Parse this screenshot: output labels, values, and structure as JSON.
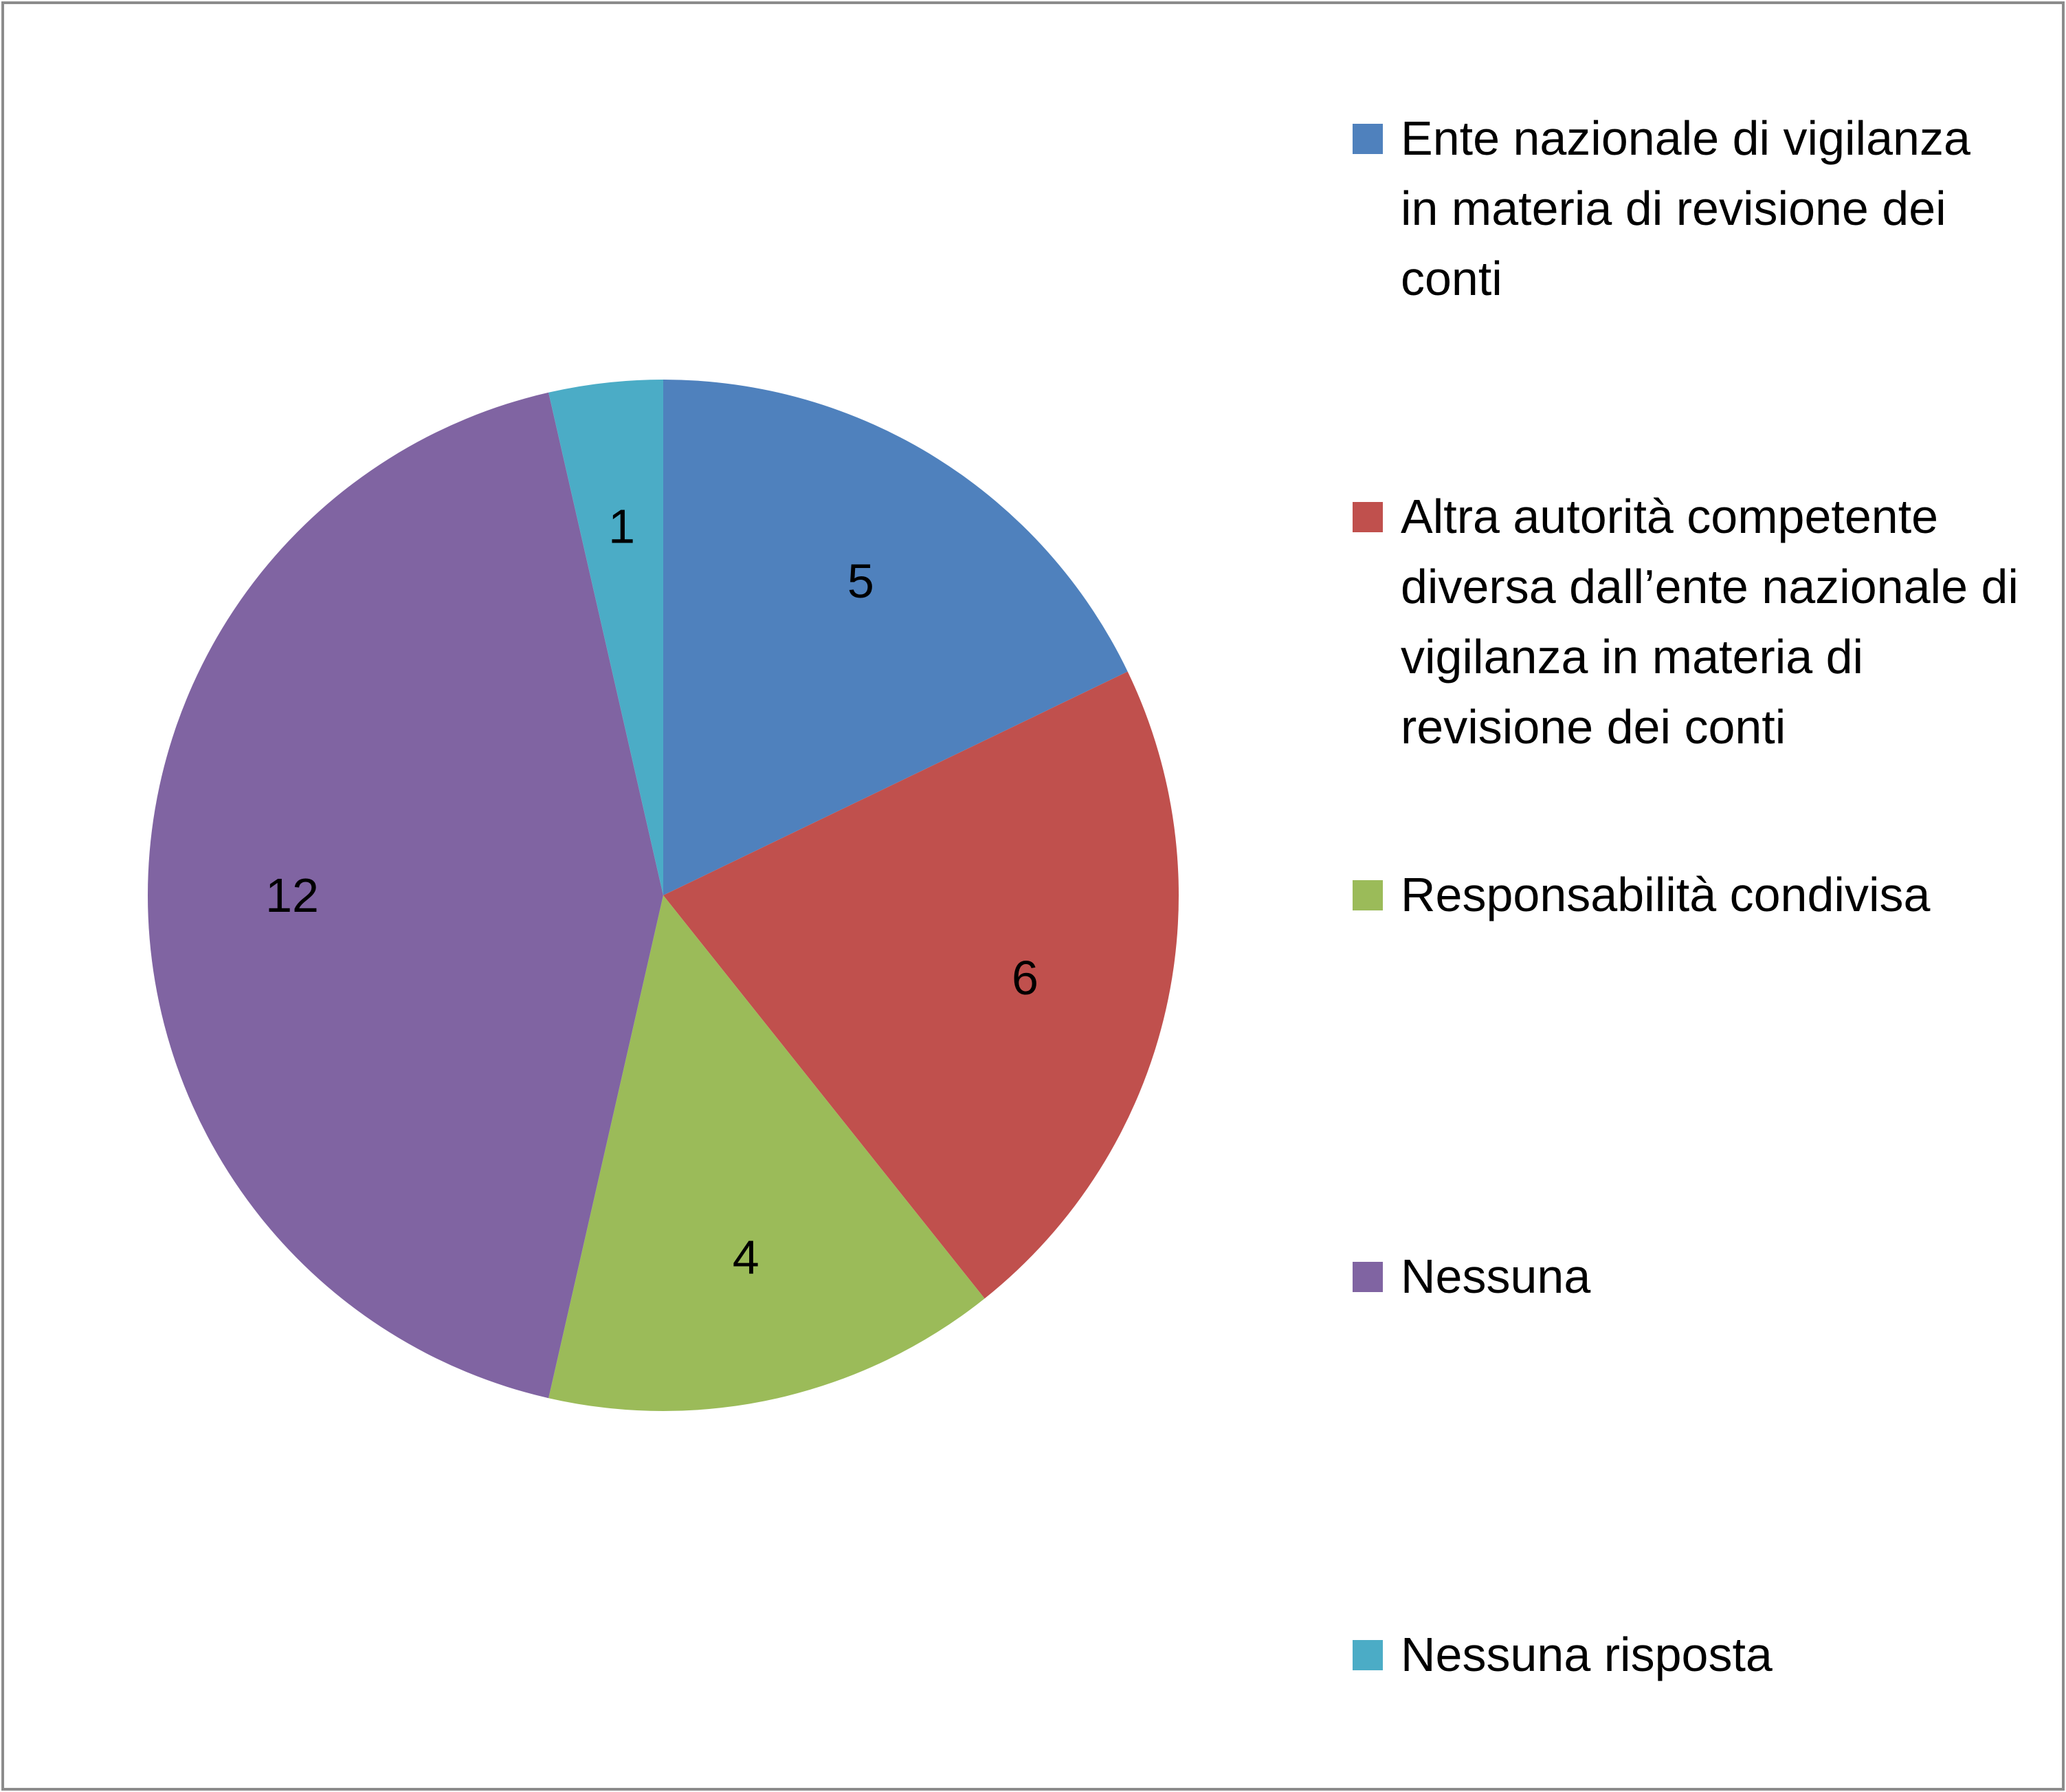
{
  "chart_data": {
    "type": "pie",
    "title": "",
    "categories": [
      "Ente nazionale di vigilanza in materia di revisione dei conti",
      "Altra autorità competente diversa dall’ente nazionale di vigilanza in materia di revisione dei conti",
      "Responsabilità condivisa",
      "Nessuna",
      "Nessuna risposta"
    ],
    "values": [
      5,
      6,
      4,
      12,
      1
    ],
    "data_labels": [
      "5",
      "6",
      "4",
      "12",
      "1"
    ],
    "colors": [
      "#4f81bd",
      "#c0504d",
      "#9bbb59",
      "#8064a2",
      "#4bacc6"
    ],
    "legend_position": "right",
    "start_angle": "top",
    "direction": "clockwise"
  }
}
